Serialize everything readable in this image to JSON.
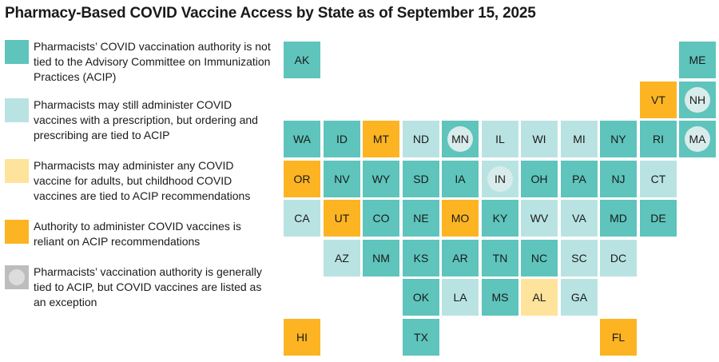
{
  "title": "Pharmacy-Based COVID Vaccine Access by State as of September 15, 2025",
  "colors": {
    "teal": "#5ec4bc",
    "lightteal": "#b9e3e2",
    "lightyellow": "#fde39c",
    "orange": "#fcb422",
    "gray": "#c9c9c9",
    "circle": "#d9ecec"
  },
  "legend": [
    {
      "category": "teal",
      "text": "Pharmacists’ COVID vaccination authority is not tied to the Advisory Committee on Immunization Practices (ACIP)"
    },
    {
      "category": "lightteal",
      "text": "Pharmacists may still administer COVID vaccines with a prescription, but ordering and prescribing are tied to ACIP"
    },
    {
      "category": "lightyellow",
      "text": "Pharmacists may administer any COVID vaccine for adults, but childhood COVID vaccines are tied to ACIP recommendations"
    },
    {
      "category": "orange",
      "text": "Authority to administer COVID vaccines is reliant on ACIP recommendations"
    },
    {
      "category": "gray",
      "text": "Pharmacists’ vaccination authority is generally tied to ACIP,  but COVID vaccines are listed as an exception"
    }
  ],
  "states": [
    {
      "abbr": "AK",
      "row": 0,
      "col": 0,
      "category": "teal",
      "exception": false
    },
    {
      "abbr": "ME",
      "row": 0,
      "col": 10,
      "category": "teal",
      "exception": false
    },
    {
      "abbr": "VT",
      "row": 1,
      "col": 9,
      "category": "orange",
      "exception": false
    },
    {
      "abbr": "NH",
      "row": 1,
      "col": 10,
      "category": "teal",
      "exception": true
    },
    {
      "abbr": "WA",
      "row": 2,
      "col": 0,
      "category": "teal",
      "exception": false
    },
    {
      "abbr": "ID",
      "row": 2,
      "col": 1,
      "category": "teal",
      "exception": false
    },
    {
      "abbr": "MT",
      "row": 2,
      "col": 2,
      "category": "orange",
      "exception": false
    },
    {
      "abbr": "ND",
      "row": 2,
      "col": 3,
      "category": "lightteal",
      "exception": false
    },
    {
      "abbr": "MN",
      "row": 2,
      "col": 4,
      "category": "teal",
      "exception": true
    },
    {
      "abbr": "IL",
      "row": 2,
      "col": 5,
      "category": "lightteal",
      "exception": false
    },
    {
      "abbr": "WI",
      "row": 2,
      "col": 6,
      "category": "lightteal",
      "exception": false
    },
    {
      "abbr": "MI",
      "row": 2,
      "col": 7,
      "category": "lightteal",
      "exception": false
    },
    {
      "abbr": "NY",
      "row": 2,
      "col": 8,
      "category": "teal",
      "exception": false
    },
    {
      "abbr": "RI",
      "row": 2,
      "col": 9,
      "category": "teal",
      "exception": false
    },
    {
      "abbr": "MA",
      "row": 2,
      "col": 10,
      "category": "teal",
      "exception": true
    },
    {
      "abbr": "OR",
      "row": 3,
      "col": 0,
      "category": "orange",
      "exception": false
    },
    {
      "abbr": "NV",
      "row": 3,
      "col": 1,
      "category": "teal",
      "exception": false
    },
    {
      "abbr": "WY",
      "row": 3,
      "col": 2,
      "category": "teal",
      "exception": false
    },
    {
      "abbr": "SD",
      "row": 3,
      "col": 3,
      "category": "teal",
      "exception": false
    },
    {
      "abbr": "IA",
      "row": 3,
      "col": 4,
      "category": "teal",
      "exception": false
    },
    {
      "abbr": "IN",
      "row": 3,
      "col": 5,
      "category": "lightteal",
      "exception": true
    },
    {
      "abbr": "OH",
      "row": 3,
      "col": 6,
      "category": "teal",
      "exception": false
    },
    {
      "abbr": "PA",
      "row": 3,
      "col": 7,
      "category": "teal",
      "exception": false
    },
    {
      "abbr": "NJ",
      "row": 3,
      "col": 8,
      "category": "teal",
      "exception": false
    },
    {
      "abbr": "CT",
      "row": 3,
      "col": 9,
      "category": "lightteal",
      "exception": false
    },
    {
      "abbr": "CA",
      "row": 4,
      "col": 0,
      "category": "lightteal",
      "exception": false
    },
    {
      "abbr": "UT",
      "row": 4,
      "col": 1,
      "category": "orange",
      "exception": false
    },
    {
      "abbr": "CO",
      "row": 4,
      "col": 2,
      "category": "teal",
      "exception": false
    },
    {
      "abbr": "NE",
      "row": 4,
      "col": 3,
      "category": "teal",
      "exception": false
    },
    {
      "abbr": "MO",
      "row": 4,
      "col": 4,
      "category": "orange",
      "exception": false
    },
    {
      "abbr": "KY",
      "row": 4,
      "col": 5,
      "category": "teal",
      "exception": false
    },
    {
      "abbr": "WV",
      "row": 4,
      "col": 6,
      "category": "lightteal",
      "exception": false
    },
    {
      "abbr": "VA",
      "row": 4,
      "col": 7,
      "category": "lightteal",
      "exception": false
    },
    {
      "abbr": "MD",
      "row": 4,
      "col": 8,
      "category": "teal",
      "exception": false
    },
    {
      "abbr": "DE",
      "row": 4,
      "col": 9,
      "category": "teal",
      "exception": false
    },
    {
      "abbr": "AZ",
      "row": 5,
      "col": 1,
      "category": "lightteal",
      "exception": false
    },
    {
      "abbr": "NM",
      "row": 5,
      "col": 2,
      "category": "teal",
      "exception": false
    },
    {
      "abbr": "KS",
      "row": 5,
      "col": 3,
      "category": "teal",
      "exception": false
    },
    {
      "abbr": "AR",
      "row": 5,
      "col": 4,
      "category": "teal",
      "exception": false
    },
    {
      "abbr": "TN",
      "row": 5,
      "col": 5,
      "category": "teal",
      "exception": false
    },
    {
      "abbr": "NC",
      "row": 5,
      "col": 6,
      "category": "teal",
      "exception": false
    },
    {
      "abbr": "SC",
      "row": 5,
      "col": 7,
      "category": "lightteal",
      "exception": false
    },
    {
      "abbr": "DC",
      "row": 5,
      "col": 8,
      "category": "lightteal",
      "exception": false
    },
    {
      "abbr": "OK",
      "row": 6,
      "col": 3,
      "category": "teal",
      "exception": false
    },
    {
      "abbr": "LA",
      "row": 6,
      "col": 4,
      "category": "lightteal",
      "exception": false
    },
    {
      "abbr": "MS",
      "row": 6,
      "col": 5,
      "category": "teal",
      "exception": false
    },
    {
      "abbr": "AL",
      "row": 6,
      "col": 6,
      "category": "lightyellow",
      "exception": false
    },
    {
      "abbr": "GA",
      "row": 6,
      "col": 7,
      "category": "lightteal",
      "exception": false
    },
    {
      "abbr": "HI",
      "row": 7,
      "col": 0,
      "category": "orange",
      "exception": false
    },
    {
      "abbr": "TX",
      "row": 7,
      "col": 3,
      "category": "teal",
      "exception": false
    },
    {
      "abbr": "FL",
      "row": 7,
      "col": 8,
      "category": "orange",
      "exception": false
    }
  ]
}
